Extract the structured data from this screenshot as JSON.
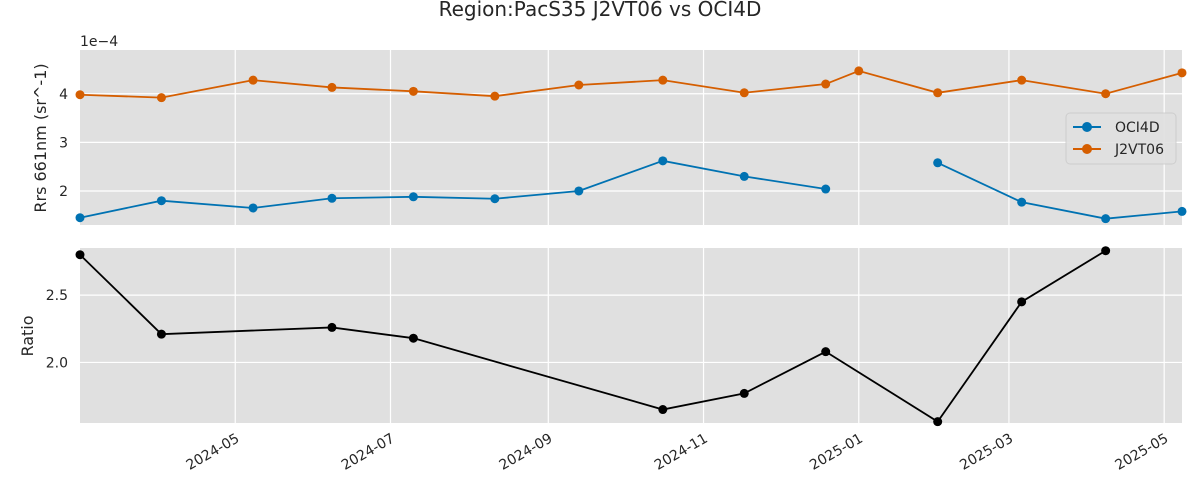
{
  "chart_data": {
    "type": "line",
    "title": "Region:PacS35 J2VT06 vs OCI4D",
    "x_tick_labels": [
      "2024-05",
      "2024-07",
      "2024-09",
      "2024-11",
      "2025-01",
      "2025-03",
      "2025-05"
    ],
    "x_tick_dates": [
      "2024-05-01",
      "2024-07-01",
      "2024-09-01",
      "2024-11-01",
      "2025-01-01",
      "2025-03-01",
      "2025-05-01"
    ],
    "xlim": [
      "2024-03-01",
      "2025-05-08"
    ],
    "panels": [
      {
        "ylabel": "Rrs 661nm (sr^-1)",
        "offset_text": "1e−4",
        "ylim": [
          1.3,
          4.9
        ],
        "y_ticks": [
          2,
          3,
          4
        ],
        "y_tick_labels": [
          "2",
          "3",
          "4"
        ],
        "legend": "center-right",
        "series": [
          {
            "name": "OCI4D",
            "color": "#0072b2",
            "points": [
              [
                "2024-03-01",
                1.45
              ],
              [
                "2024-04-02",
                1.8
              ],
              [
                "2024-05-08",
                1.65
              ],
              [
                "2024-06-08",
                1.85
              ],
              [
                "2024-07-10",
                1.88
              ],
              [
                "2024-08-11",
                1.84
              ],
              [
                "2024-09-13",
                2.0
              ],
              [
                "2024-10-16",
                2.62
              ],
              [
                "2024-11-17",
                2.3
              ],
              [
                "2024-12-19",
                2.04
              ],
              [
                null,
                null
              ],
              [
                "2025-02-01",
                2.58
              ],
              [
                "2025-03-06",
                1.77
              ],
              [
                "2025-04-08",
                1.43
              ],
              [
                "2025-05-08",
                1.58
              ]
            ]
          },
          {
            "name": "J2VT06",
            "color": "#d55e00",
            "points": [
              [
                "2024-03-01",
                3.98
              ],
              [
                "2024-04-02",
                3.92
              ],
              [
                "2024-05-08",
                4.28
              ],
              [
                "2024-06-08",
                4.13
              ],
              [
                "2024-07-10",
                4.05
              ],
              [
                "2024-08-11",
                3.95
              ],
              [
                "2024-09-13",
                4.18
              ],
              [
                "2024-10-16",
                4.28
              ],
              [
                "2024-11-17",
                4.02
              ],
              [
                "2024-12-19",
                4.2
              ],
              [
                "2025-01-01",
                4.47
              ],
              [
                "2025-02-01",
                4.02
              ],
              [
                "2025-03-06",
                4.28
              ],
              [
                "2025-04-08",
                4.0
              ],
              [
                "2025-05-08",
                4.43
              ]
            ]
          }
        ]
      },
      {
        "ylabel": "Ratio",
        "ylim": [
          1.55,
          2.85
        ],
        "y_ticks": [
          2.0,
          2.5
        ],
        "y_tick_labels": [
          "2.0",
          "2.5"
        ],
        "series": [
          {
            "name": "",
            "color": "#000000",
            "points": [
              [
                "2024-03-01",
                2.8
              ],
              [
                "2024-04-02",
                2.21
              ],
              [
                "2024-06-08",
                2.26
              ],
              [
                "2024-07-10",
                2.18
              ],
              [
                "2024-10-16",
                1.65
              ],
              [
                "2024-11-17",
                1.77
              ],
              [
                "2024-12-19",
                2.08
              ],
              [
                "2025-02-01",
                1.56
              ],
              [
                "2025-03-06",
                2.45
              ],
              [
                "2025-04-08",
                2.83
              ]
            ]
          }
        ]
      }
    ]
  }
}
